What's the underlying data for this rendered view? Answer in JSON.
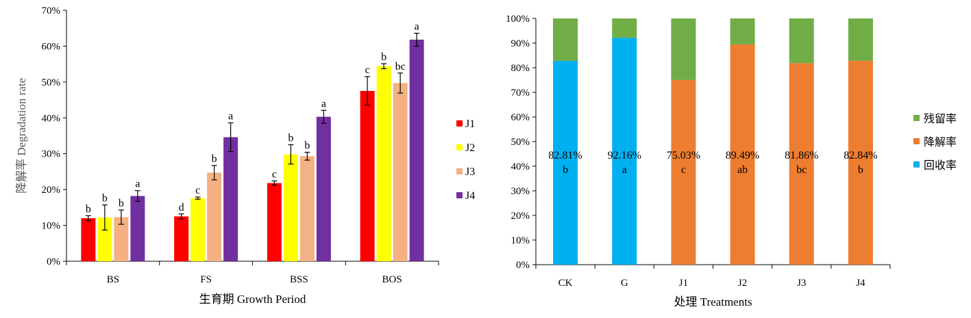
{
  "chart_data": [
    {
      "type": "bar",
      "title": "",
      "xlabel": "生育期 Growth Period",
      "ylabel": "降解率 Degradation rate",
      "ylim": [
        0,
        70
      ],
      "ytick_step": 10,
      "ytick_suffix": "%",
      "categories": [
        "BS",
        "FS",
        "BSS",
        "BOS"
      ],
      "legend_position": "right",
      "series": [
        {
          "name": "J1",
          "color": "#ff0000",
          "values": [
            12.0,
            12.5,
            21.8,
            47.5
          ],
          "errors": [
            0.7,
            0.7,
            0.6,
            4.0
          ],
          "sig": [
            "b",
            "d",
            "c",
            "c"
          ]
        },
        {
          "name": "J2",
          "color": "#ffff00",
          "values": [
            12.2,
            17.6,
            29.8,
            54.4
          ],
          "errors": [
            3.5,
            0.3,
            2.7,
            0.7
          ],
          "sig": [
            "b",
            "c",
            "b",
            "b"
          ]
        },
        {
          "name": "J3",
          "color": "#f4b183",
          "values": [
            12.3,
            24.7,
            29.3,
            49.7
          ],
          "errors": [
            2.0,
            2.0,
            1.1,
            2.8
          ],
          "sig": [
            "b",
            "b",
            "b",
            "bc"
          ]
        },
        {
          "name": "J4",
          "color": "#7030a0",
          "values": [
            18.2,
            34.6,
            40.3,
            61.8
          ],
          "errors": [
            1.5,
            4.0,
            1.8,
            1.8
          ],
          "sig": [
            "a",
            "a",
            "a",
            "a"
          ]
        }
      ]
    },
    {
      "type": "bar",
      "stacked": true,
      "title": "",
      "xlabel": "处理 Treatments",
      "ylabel": "",
      "ylim": [
        0,
        100
      ],
      "ytick_step": 10,
      "ytick_suffix": "%",
      "categories": [
        "CK",
        "G",
        "J1",
        "J2",
        "J3",
        "J4"
      ],
      "legend_position": "right",
      "legend_order": [
        "残留率",
        "降解率",
        "回收率"
      ],
      "series": [
        {
          "name": "回收率",
          "color": "#00b0f0",
          "values": [
            82.81,
            92.16,
            0,
            0,
            0,
            0
          ]
        },
        {
          "name": "降解率",
          "color": "#ed7d31",
          "values": [
            0,
            0,
            75.03,
            89.49,
            81.86,
            82.84
          ]
        },
        {
          "name": "残留率",
          "color": "#70ad47",
          "values": [
            17.19,
            7.84,
            24.97,
            10.51,
            18.14,
            17.16
          ]
        }
      ],
      "labels": [
        {
          "value": "82.81%",
          "sig": "b"
        },
        {
          "value": "92.16%",
          "sig": "a"
        },
        {
          "value": "75.03%",
          "sig": "c"
        },
        {
          "value": "89.49%",
          "sig": "ab"
        },
        {
          "value": "81.86%",
          "sig": "bc"
        },
        {
          "value": "82.84%",
          "sig": "b"
        }
      ]
    }
  ]
}
